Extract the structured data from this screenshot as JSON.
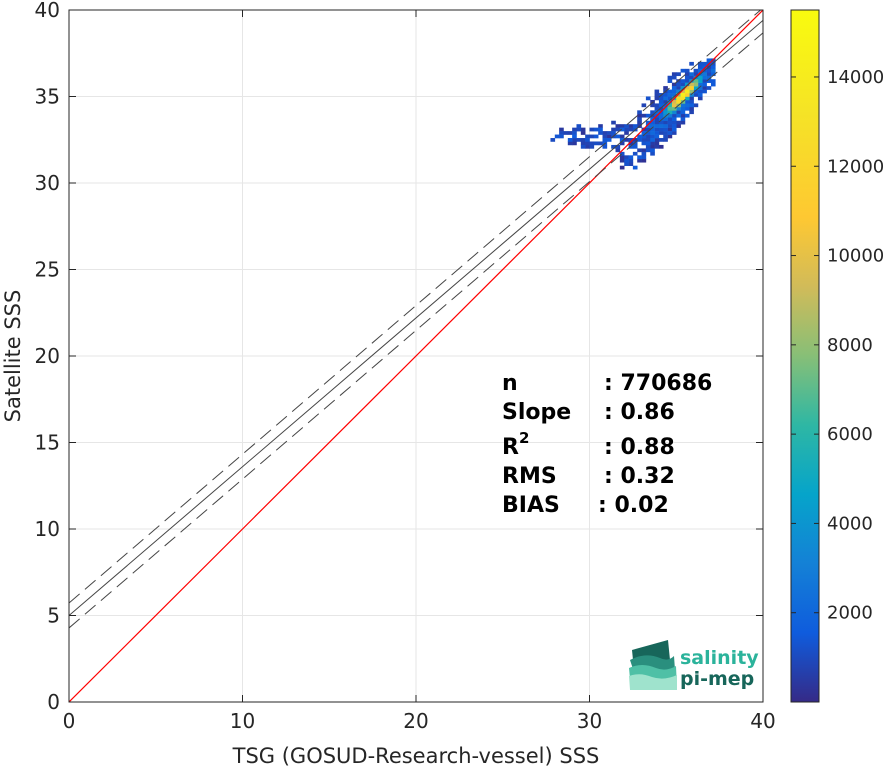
{
  "chart_data": {
    "type": "heatmap",
    "xlabel": "TSG (GOSUD-Research-vessel) SSS",
    "ylabel": "Satellite SSS",
    "xlim": [
      0,
      40
    ],
    "ylim": [
      0,
      40
    ],
    "xticks": [
      0,
      10,
      20,
      30,
      40
    ],
    "yticks": [
      0,
      5,
      10,
      15,
      20,
      25,
      30,
      35,
      40
    ],
    "grid": true,
    "colorbar": {
      "colormap": "parula",
      "range": [
        0,
        15500
      ],
      "ticks": [
        2000,
        4000,
        6000,
        8000,
        10000,
        12000,
        14000
      ]
    },
    "reference_line": {
      "slope": 1,
      "intercept": 0,
      "color": "#ff0000"
    },
    "regression_line": {
      "slope": 0.86,
      "intercept": 5.0,
      "color": "#444444",
      "style": "solid"
    },
    "confidence_band": {
      "offset": 0.72,
      "color": "#444444",
      "style": "dashed"
    },
    "density_core": {
      "x_center": 35.5,
      "y_center": 35.3,
      "peak_count": 15500
    },
    "stats": [
      {
        "label": "n",
        "sep": ": ",
        "value": "770686"
      },
      {
        "label": "Slope",
        "sep": ": ",
        "value": "0.86"
      },
      {
        "label": "R",
        "sup": "2",
        "sep": ": ",
        "value": "0.88"
      },
      {
        "label": "RMS",
        "sep": ": ",
        "value": "0.32"
      },
      {
        "label": "BIAS",
        "sep": ": ",
        "value": "0.02"
      }
    ]
  },
  "logo": {
    "line1": "salinity",
    "line2": "pi-mep",
    "color1": "#2bb39b",
    "color2": "#17665a"
  }
}
